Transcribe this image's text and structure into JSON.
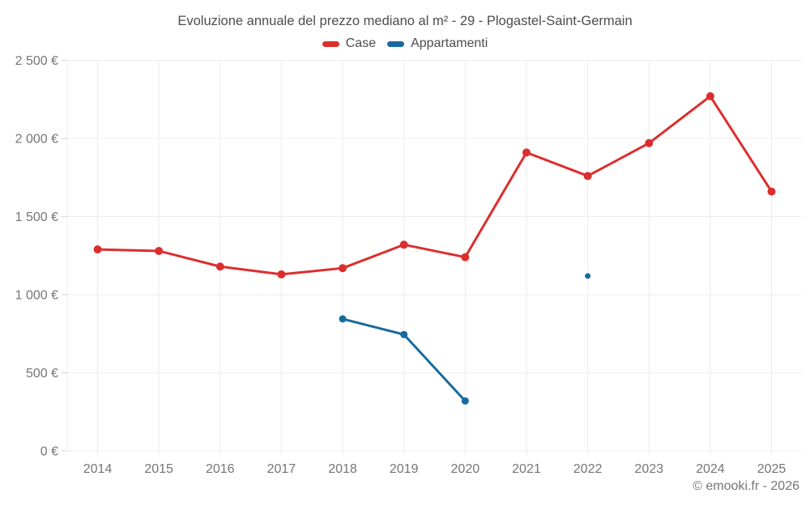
{
  "title": "Evoluzione annuale del prezzo mediano al m² - 29 - Plogastel-Saint-Germain",
  "legend": {
    "items": [
      {
        "label": "Case",
        "color": "#dc2e2e"
      },
      {
        "label": "Appartamenti",
        "color": "#166a9f"
      }
    ]
  },
  "copyright": "© emooki.fr - 2026",
  "colors": {
    "grid": "#ececec",
    "axis_tick": "#d6d6d6",
    "axis_label": "#757575",
    "title_text": "#4d4d4d"
  },
  "chart_data": {
    "type": "line",
    "title": "Evoluzione annuale del prezzo mediano al m² - 29 - Plogastel-Saint-Germain",
    "categories": [
      "2014",
      "2015",
      "2016",
      "2017",
      "2018",
      "2019",
      "2020",
      "2021",
      "2022",
      "2023",
      "2024",
      "2025"
    ],
    "series": [
      {
        "name": "Case",
        "color": "#dc2e2e",
        "values": [
          1290,
          1280,
          1180,
          1130,
          1170,
          1320,
          1240,
          1910,
          1760,
          1970,
          2270,
          1660
        ]
      },
      {
        "name": "Appartamenti",
        "color": "#166a9f",
        "values": [
          null,
          null,
          null,
          null,
          845,
          745,
          320,
          null,
          1120,
          null,
          null,
          null
        ]
      }
    ],
    "xlabel": "",
    "ylabel": "",
    "ylim": [
      0,
      2500
    ],
    "yticks": [
      0,
      500,
      1000,
      1500,
      2000,
      2500
    ],
    "ytick_labels": [
      "0 €",
      "500 €",
      "1 000 €",
      "1 500 €",
      "2 000 €",
      "2 500 €"
    ],
    "grid": true,
    "legend_position": "top-center"
  }
}
